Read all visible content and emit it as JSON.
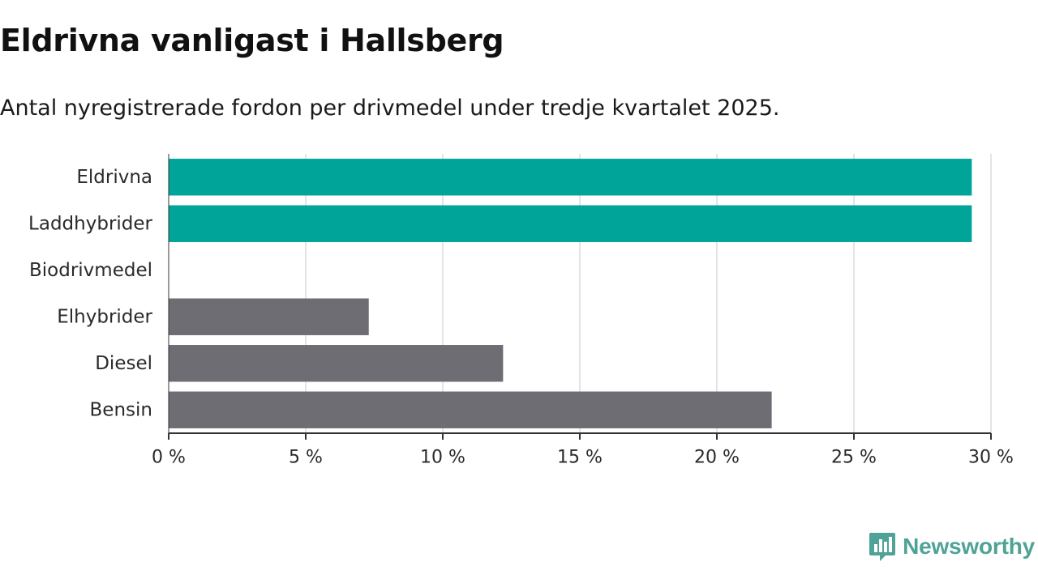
{
  "title": "Eldrivna vanligast i Hallsberg",
  "subtitle": "Antal nyregistrerade fordon per drivmedel under tredje kvartalet 2025.",
  "brand": "Newsworthy",
  "colors": {
    "highlight": "#00a499",
    "default": "#6d6d73",
    "grid": "#dcdcdc",
    "axis": "#333333",
    "brand": "#4ea396"
  },
  "chart_data": {
    "type": "bar",
    "orientation": "horizontal",
    "title": "Eldrivna vanligast i Hallsberg",
    "subtitle": "Antal nyregistrerade fordon per drivmedel under tredje kvartalet 2025.",
    "xlabel": "",
    "ylabel": "",
    "xlim": [
      0,
      30
    ],
    "ticks": [
      0,
      5,
      10,
      15,
      20,
      25,
      30
    ],
    "tick_labels": [
      "0 %",
      "5 %",
      "10 %",
      "15 %",
      "20 %",
      "25 %",
      "30 %"
    ],
    "grid": true,
    "categories": [
      "Eldrivna",
      "Laddhybrider",
      "Biodrivmedel",
      "Elhybrider",
      "Diesel",
      "Bensin"
    ],
    "values": [
      29.3,
      29.3,
      0,
      7.3,
      12.2,
      22.0
    ],
    "highlighted": [
      true,
      true,
      false,
      false,
      false,
      false
    ]
  }
}
